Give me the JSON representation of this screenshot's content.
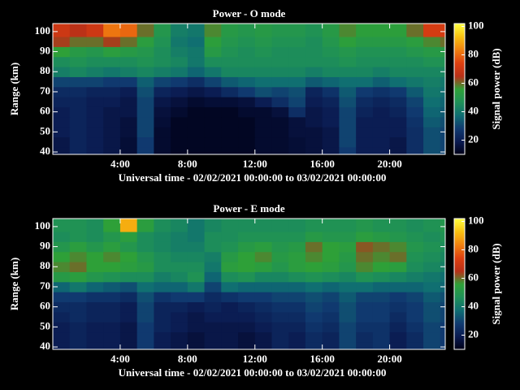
{
  "chart_data": [
    {
      "type": "heatmap",
      "title": "Power - O mode",
      "xlabel": "Universal time - 02/02/2021 00:00:00 to 03/02/2021 00:00:00",
      "ylabel": "Range (km)",
      "zlabel": "Signal power (dB)",
      "x": [
        0,
        1,
        2,
        3,
        4,
        5,
        6,
        7,
        8,
        9,
        10,
        11,
        12,
        13,
        14,
        15,
        16,
        17,
        18,
        19,
        20,
        21,
        22,
        23
      ],
      "y": [
        40,
        45,
        50,
        55,
        60,
        65,
        70,
        75,
        80,
        85,
        90,
        95,
        100
      ],
      "values": [
        [
          18,
          22,
          20,
          18,
          15,
          28,
          14,
          12,
          12,
          12,
          12,
          12,
          14,
          14,
          15,
          16,
          18,
          28,
          20,
          20,
          18,
          25,
          32,
          30
        ],
        [
          18,
          22,
          20,
          18,
          15,
          28,
          14,
          12,
          12,
          12,
          12,
          12,
          14,
          14,
          15,
          16,
          18,
          30,
          20,
          20,
          18,
          25,
          32,
          30
        ],
        [
          20,
          22,
          20,
          18,
          16,
          30,
          14,
          12,
          12,
          12,
          12,
          12,
          14,
          14,
          16,
          16,
          18,
          30,
          20,
          20,
          20,
          25,
          32,
          30
        ],
        [
          20,
          22,
          20,
          18,
          16,
          30,
          15,
          12,
          12,
          12,
          12,
          12,
          14,
          14,
          16,
          18,
          20,
          30,
          20,
          20,
          20,
          26,
          34,
          32
        ],
        [
          20,
          22,
          20,
          18,
          18,
          30,
          16,
          14,
          12,
          12,
          12,
          14,
          14,
          16,
          25,
          18,
          20,
          30,
          22,
          20,
          22,
          28,
          36,
          34
        ],
        [
          22,
          22,
          20,
          20,
          18,
          30,
          18,
          16,
          14,
          15,
          15,
          16,
          20,
          25,
          30,
          20,
          22,
          32,
          24,
          22,
          24,
          30,
          38,
          36
        ],
        [
          24,
          24,
          22,
          22,
          20,
          32,
          22,
          20,
          18,
          20,
          24,
          28,
          32,
          30,
          32,
          22,
          26,
          34,
          28,
          26,
          28,
          34,
          40,
          38
        ],
        [
          30,
          30,
          30,
          28,
          28,
          35,
          30,
          28,
          25,
          30,
          34,
          36,
          38,
          38,
          38,
          34,
          36,
          38,
          38,
          35,
          38,
          40,
          42,
          40
        ],
        [
          42,
          44,
          42,
          40,
          42,
          44,
          42,
          40,
          36,
          40,
          44,
          44,
          44,
          44,
          44,
          42,
          44,
          44,
          44,
          42,
          44,
          44,
          44,
          44
        ],
        [
          46,
          48,
          46,
          46,
          46,
          48,
          46,
          44,
          40,
          46,
          46,
          46,
          46,
          46,
          46,
          46,
          46,
          48,
          46,
          46,
          46,
          46,
          48,
          48
        ],
        [
          56,
          52,
          50,
          54,
          52,
          50,
          46,
          42,
          40,
          52,
          48,
          46,
          48,
          46,
          46,
          46,
          48,
          50,
          48,
          48,
          48,
          50,
          52,
          52
        ],
        [
          64,
          60,
          60,
          64,
          60,
          54,
          48,
          40,
          38,
          55,
          50,
          48,
          50,
          48,
          48,
          46,
          50,
          55,
          52,
          52,
          52,
          54,
          58,
          60
        ],
        [
          70,
          66,
          70,
          82,
          80,
          60,
          50,
          42,
          40,
          58,
          52,
          50,
          52,
          50,
          50,
          48,
          52,
          58,
          55,
          55,
          55,
          60,
          72,
          72
        ]
      ],
      "xlim": [
        0,
        23.3
      ],
      "ylim": [
        38.8,
        104
      ],
      "xticks": [
        {
          "value": 4,
          "label": "4:00"
        },
        {
          "value": 8,
          "label": "8:00"
        },
        {
          "value": 12,
          "label": "12:00"
        },
        {
          "value": 16,
          "label": "16:00"
        },
        {
          "value": 20,
          "label": "20:00"
        }
      ],
      "yticks": [
        40,
        50,
        60,
        70,
        80,
        90,
        100
      ],
      "zlim": [
        10,
        102
      ],
      "zticks": [
        20,
        40,
        60,
        80,
        100
      ],
      "colormap": [
        "#000016",
        "#0a1a50",
        "#103a70",
        "#0f6e72",
        "#1e9058",
        "#2ea038",
        "#b83018",
        "#de4010",
        "#f08010",
        "#f8c010",
        "#ffff40"
      ]
    },
    {
      "type": "heatmap",
      "title": "Power - E mode",
      "xlabel": "Universal time - 02/02/2021 00:00:00 to 03/02/2021 00:00:00",
      "ylabel": "Range (km)",
      "zlabel": "Signal power (dB)",
      "x": [
        0,
        1,
        2,
        3,
        4,
        5,
        6,
        7,
        8,
        9,
        10,
        11,
        12,
        13,
        14,
        15,
        16,
        17,
        18,
        19,
        20,
        21,
        22,
        23
      ],
      "y": [
        40,
        45,
        50,
        55,
        60,
        65,
        70,
        75,
        80,
        85,
        90,
        95,
        100
      ],
      "values": [
        [
          20,
          22,
          20,
          20,
          18,
          28,
          20,
          18,
          16,
          18,
          18,
          16,
          18,
          22,
          20,
          24,
          22,
          30,
          24,
          26,
          20,
          24,
          30,
          28
        ],
        [
          20,
          22,
          20,
          20,
          18,
          28,
          20,
          18,
          16,
          18,
          18,
          16,
          18,
          22,
          20,
          24,
          22,
          30,
          24,
          26,
          20,
          24,
          30,
          28
        ],
        [
          20,
          22,
          20,
          20,
          18,
          28,
          22,
          20,
          18,
          18,
          18,
          18,
          20,
          22,
          22,
          26,
          24,
          30,
          26,
          26,
          22,
          26,
          30,
          28
        ],
        [
          22,
          24,
          22,
          22,
          20,
          30,
          22,
          20,
          18,
          20,
          20,
          20,
          22,
          24,
          24,
          28,
          26,
          32,
          28,
          28,
          24,
          28,
          32,
          30
        ],
        [
          24,
          24,
          22,
          22,
          20,
          30,
          22,
          22,
          20,
          22,
          20,
          22,
          24,
          26,
          26,
          30,
          28,
          32,
          28,
          28,
          26,
          28,
          32,
          30
        ],
        [
          28,
          28,
          26,
          26,
          24,
          32,
          26,
          28,
          28,
          24,
          26,
          28,
          28,
          30,
          30,
          32,
          30,
          34,
          30,
          30,
          28,
          30,
          34,
          32
        ],
        [
          36,
          40,
          36,
          34,
          32,
          38,
          36,
          36,
          40,
          30,
          38,
          36,
          36,
          36,
          36,
          38,
          36,
          38,
          38,
          36,
          36,
          36,
          38,
          36
        ],
        [
          52,
          54,
          50,
          48,
          46,
          46,
          42,
          44,
          48,
          36,
          46,
          48,
          44,
          44,
          46,
          48,
          46,
          44,
          48,
          46,
          44,
          42,
          40,
          38
        ],
        [
          58,
          60,
          56,
          56,
          54,
          52,
          46,
          46,
          46,
          40,
          54,
          56,
          54,
          50,
          54,
          56,
          54,
          50,
          58,
          56,
          54,
          46,
          44,
          42
        ],
        [
          56,
          58,
          56,
          58,
          56,
          50,
          46,
          44,
          44,
          42,
          52,
          56,
          58,
          52,
          54,
          58,
          56,
          52,
          60,
          58,
          60,
          48,
          46,
          44
        ],
        [
          50,
          54,
          50,
          54,
          50,
          46,
          44,
          42,
          42,
          46,
          48,
          52,
          54,
          50,
          52,
          60,
          56,
          54,
          62,
          60,
          58,
          50,
          48,
          46
        ],
        [
          46,
          48,
          46,
          50,
          54,
          46,
          44,
          42,
          40,
          46,
          46,
          48,
          48,
          48,
          48,
          52,
          50,
          50,
          54,
          52,
          50,
          48,
          46,
          48
        ],
        [
          48,
          48,
          46,
          56,
          90,
          54,
          46,
          44,
          40,
          44,
          46,
          46,
          46,
          46,
          46,
          48,
          48,
          48,
          50,
          48,
          48,
          46,
          48,
          50
        ]
      ],
      "xlim": [
        0,
        23.3
      ],
      "ylim": [
        38.8,
        104
      ],
      "xticks": [
        {
          "value": 4,
          "label": "4:00"
        },
        {
          "value": 8,
          "label": "8:00"
        },
        {
          "value": 12,
          "label": "12:00"
        },
        {
          "value": 16,
          "label": "16:00"
        },
        {
          "value": 20,
          "label": "20:00"
        }
      ],
      "yticks": [
        40,
        50,
        60,
        70,
        80,
        90,
        100
      ],
      "zlim": [
        10,
        102
      ],
      "zticks": [
        20,
        40,
        60,
        80,
        100
      ],
      "colormap": [
        "#000016",
        "#0a1a50",
        "#103a70",
        "#0f6e72",
        "#1e9058",
        "#2ea038",
        "#b83018",
        "#de4010",
        "#f08010",
        "#f8c010",
        "#ffff40"
      ]
    }
  ]
}
